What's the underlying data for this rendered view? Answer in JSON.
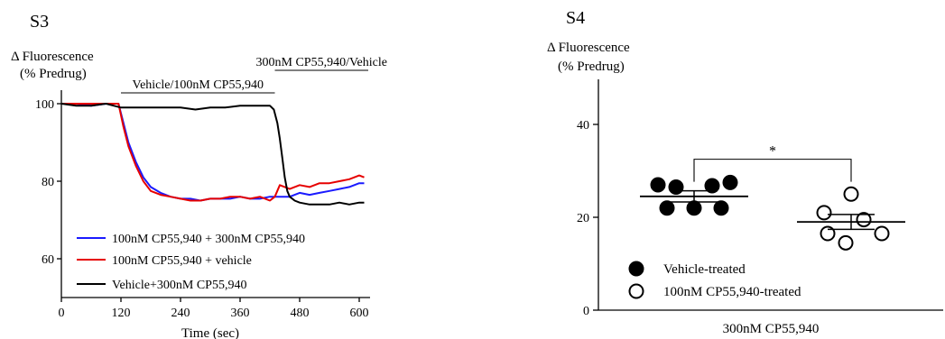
{
  "chart_data": [
    {
      "panel": "S3",
      "type": "line",
      "ylabel_line1": "Δ Fluorescence",
      "ylabel_line2": "(% Predrug)",
      "xlabel": "Time (sec)",
      "xlim": [
        0,
        620
      ],
      "ylim": [
        50,
        105
      ],
      "xticks": [
        0,
        120,
        240,
        360,
        480,
        600
      ],
      "yticks": [
        60,
        80,
        100
      ],
      "grid": false,
      "legend_position": "bottom-left",
      "annotations": [
        {
          "text": "Vehicle/100nM CP55,940",
          "x_start": 120,
          "x_end": 430
        },
        {
          "text": "300nM CP55,940/Vehicle",
          "x_start": 430,
          "x_end": 620
        }
      ],
      "series": [
        {
          "name": "100nM CP55,940 + 300nM CP55,940",
          "color": "#1a1aff",
          "x": [
            0,
            30,
            60,
            90,
            115,
            125,
            135,
            150,
            165,
            180,
            200,
            220,
            240,
            260,
            280,
            300,
            320,
            340,
            360,
            380,
            400,
            420,
            440,
            460,
            480,
            500,
            520,
            540,
            560,
            580,
            600,
            610
          ],
          "y": [
            100,
            100,
            99.5,
            100,
            100,
            95,
            90,
            85,
            81,
            78.5,
            77,
            76,
            75.5,
            75.5,
            75,
            75.5,
            75.5,
            75.5,
            76,
            75.5,
            75.5,
            76,
            76,
            76,
            77,
            76.5,
            77,
            77.5,
            78,
            78.5,
            79.5,
            79.5
          ]
        },
        {
          "name": "100nM CP55,940 + vehicle",
          "color": "#e60000",
          "x": [
            0,
            30,
            60,
            90,
            115,
            125,
            135,
            150,
            165,
            180,
            200,
            220,
            240,
            260,
            280,
            300,
            320,
            340,
            360,
            380,
            400,
            420,
            430,
            440,
            460,
            480,
            500,
            520,
            540,
            560,
            580,
            600,
            610
          ],
          "y": [
            100,
            100,
            100,
            100,
            100,
            94,
            89,
            84,
            80,
            77.5,
            76.5,
            76,
            75.5,
            75,
            75,
            75.5,
            75.5,
            76,
            76,
            75.5,
            76,
            75,
            76,
            79,
            78,
            79,
            78.5,
            79.5,
            79.5,
            80,
            80.5,
            81.5,
            81
          ]
        },
        {
          "name": "Vehicle+300nM CP55,940",
          "color": "#000000",
          "x": [
            0,
            30,
            60,
            90,
            120,
            150,
            180,
            210,
            240,
            270,
            300,
            330,
            360,
            390,
            420,
            428,
            435,
            440,
            445,
            450,
            455,
            460,
            470,
            480,
            500,
            520,
            540,
            560,
            580,
            600,
            610
          ],
          "y": [
            100,
            99.5,
            99.5,
            100,
            99,
            99,
            99,
            99,
            99,
            98.5,
            99,
            99,
            99.5,
            99.5,
            99.5,
            98.5,
            95,
            91,
            86,
            81,
            77.5,
            76,
            75,
            74.5,
            74,
            74,
            74,
            74.5,
            74,
            74.5,
            74.5
          ]
        }
      ]
    },
    {
      "panel": "S4",
      "type": "scatter",
      "ylabel_line1": "Δ Fluorescence",
      "ylabel_line2": "(% Predrug)",
      "xlabel": "300nM CP55,940",
      "ylim": [
        0,
        50
      ],
      "yticks": [
        0,
        20,
        40
      ],
      "grid": false,
      "legend_position": "bottom-left",
      "significance": {
        "label": "*",
        "bracket_y": 32.5
      },
      "groups": [
        {
          "name": "Vehicle-treated",
          "marker": "filled-circle",
          "mean": 24.5,
          "sem": 1.2,
          "points": [
            {
              "pos": -2,
              "y": 27.0
            },
            {
              "pos": -1,
              "y": 26.5
            },
            {
              "pos": 1,
              "y": 26.8
            },
            {
              "pos": 2,
              "y": 27.5
            },
            {
              "pos": -1.5,
              "y": 22.0
            },
            {
              "pos": 0,
              "y": 22.0
            },
            {
              "pos": 1.5,
              "y": 22.0
            }
          ]
        },
        {
          "name": "100nM CP55,940-treated",
          "marker": "open-circle",
          "mean": 19.0,
          "sem": 1.6,
          "points": [
            {
              "pos": 0,
              "y": 25.0
            },
            {
              "pos": -1.5,
              "y": 21.0
            },
            {
              "pos": 0.7,
              "y": 19.5
            },
            {
              "pos": -1.3,
              "y": 16.5
            },
            {
              "pos": 1.7,
              "y": 16.5
            },
            {
              "pos": -0.3,
              "y": 14.5
            }
          ]
        }
      ]
    }
  ]
}
